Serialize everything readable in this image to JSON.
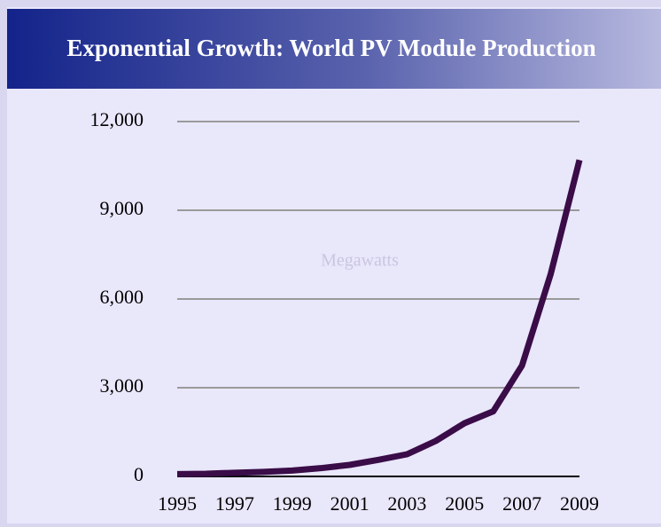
{
  "chart_data": {
    "type": "line",
    "title": "Exponential Growth: World PV Module Production",
    "annotation": "Megawatts",
    "x": [
      1995,
      1996,
      1997,
      1998,
      1999,
      2000,
      2001,
      2002,
      2003,
      2004,
      2005,
      2006,
      2007,
      2008,
      2009
    ],
    "series": [
      {
        "name": "World PV Module Production",
        "color": "#3a0c48",
        "values": [
          80,
          90,
          125,
          155,
          200,
          280,
          390,
          560,
          750,
          1200,
          1800,
          2200,
          3750,
          6850,
          10700
        ]
      }
    ],
    "xlim": [
      1995,
      2009
    ],
    "xticks": [
      1995,
      1997,
      1999,
      2001,
      2003,
      2005,
      2007,
      2009
    ],
    "ylim": [
      0,
      12000
    ],
    "yticks": [
      0,
      {
        "value": 3000,
        "label": "3,000"
      },
      {
        "value": 6000,
        "label": "6,000"
      },
      {
        "value": 9000,
        "label": "9,000"
      },
      {
        "value": 12000,
        "label": "12,000"
      }
    ],
    "grid": true
  }
}
